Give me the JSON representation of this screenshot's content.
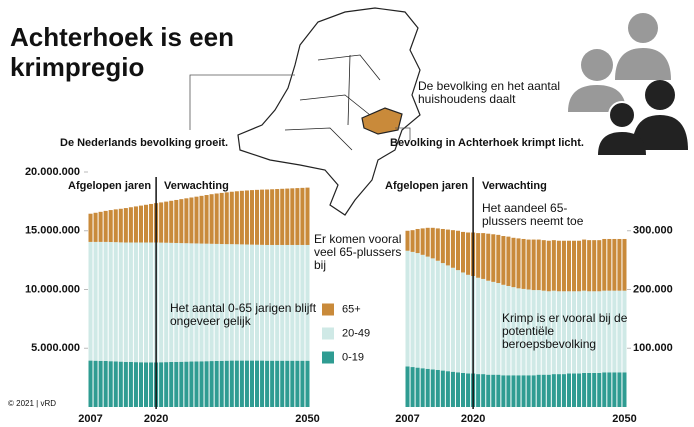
{
  "header": {
    "title": "Achterhoek is een krimpregio",
    "credit": "© 2021 | vRD",
    "note_nl": "De Nederlands bevolking groeit.",
    "note_households": "De bevolking en het aantal huishoudens daalt",
    "note_achterhoek": "Bevolking in Achterhoek krimpt licht."
  },
  "chart_data": [
    {
      "type": "stacked-bar",
      "categories": [
        2007,
        null,
        null,
        null,
        null,
        null,
        null,
        null,
        null,
        null,
        null,
        null,
        null,
        2020,
        null,
        null,
        null,
        null,
        null,
        null,
        null,
        null,
        null,
        null,
        null,
        null,
        null,
        null,
        null,
        null,
        null,
        null,
        null,
        null,
        null,
        null,
        null,
        null,
        null,
        null,
        null,
        null,
        null,
        2050
      ],
      "periods": [
        "Afgelopen jaren",
        "Verwachting"
      ],
      "annotations": [
        "Er komen vooral veel 65-plussers bij",
        "Het aantal 0-65 jarigen blijft ongeveer gelijk"
      ],
      "ylim": [
        0,
        20000000
      ],
      "yticks": [
        {
          "value": 5000000,
          "label": "5.000.000"
        },
        {
          "value": 10000000,
          "label": "10.000.000"
        },
        {
          "value": 15000000,
          "label": "15.000.000"
        },
        {
          "value": 20000000,
          "label": "20.000.000"
        }
      ],
      "axis_side": "left",
      "legend": "center-right",
      "series": [
        {
          "name": "0-19",
          "color": "#2f9c92",
          "values": [
            3950000,
            3940000,
            3930000,
            3920000,
            3900000,
            3880000,
            3860000,
            3840000,
            3830000,
            3820000,
            3810000,
            3800000,
            3800000,
            3800000,
            3810000,
            3820000,
            3830000,
            3840000,
            3850000,
            3860000,
            3870000,
            3880000,
            3890000,
            3900000,
            3910000,
            3920000,
            3930000,
            3940000,
            3950000,
            3950000,
            3950000,
            3950000,
            3950000,
            3950000,
            3950000,
            3940000,
            3940000,
            3940000,
            3940000,
            3940000,
            3940000,
            3940000,
            3940000,
            3940000
          ]
        },
        {
          "name": "20-49",
          "color": "#cfe9e6",
          "values": [
            10100000,
            10110000,
            10120000,
            10130000,
            10140000,
            10150000,
            10150000,
            10160000,
            10170000,
            10180000,
            10190000,
            10200000,
            10200000,
            10200000,
            10180000,
            10160000,
            10140000,
            10120000,
            10100000,
            10080000,
            10060000,
            10040000,
            10020000,
            10000000,
            9980000,
            9960000,
            9940000,
            9920000,
            9910000,
            9900000,
            9890000,
            9880000,
            9870000,
            9860000,
            9850000,
            9850000,
            9850000,
            9850000,
            9850000,
            9850000,
            9850000,
            9850000,
            9850000,
            9850000
          ]
        },
        {
          "name": "65+",
          "color": "#c98a3a",
          "values": [
            2400000,
            2480000,
            2560000,
            2640000,
            2720000,
            2790000,
            2860000,
            2930000,
            3000000,
            3070000,
            3140000,
            3210000,
            3280000,
            3350000,
            3420000,
            3500000,
            3580000,
            3660000,
            3740000,
            3820000,
            3900000,
            3980000,
            4060000,
            4140000,
            4220000,
            4290000,
            4350000,
            4410000,
            4460000,
            4510000,
            4560000,
            4600000,
            4640000,
            4670000,
            4700000,
            4720000,
            4740000,
            4760000,
            4780000,
            4800000,
            4820000,
            4840000,
            4860000,
            4880000
          ]
        }
      ]
    },
    {
      "type": "stacked-bar",
      "categories": [
        2007,
        null,
        null,
        null,
        null,
        null,
        null,
        null,
        null,
        null,
        null,
        null,
        null,
        2020,
        null,
        null,
        null,
        null,
        null,
        null,
        null,
        null,
        null,
        null,
        null,
        null,
        null,
        null,
        null,
        null,
        null,
        null,
        null,
        null,
        null,
        null,
        null,
        null,
        null,
        null,
        null,
        null,
        null,
        2050
      ],
      "periods": [
        "Afgelopen jaren",
        "Verwachting"
      ],
      "annotations": [
        "Het aandeel 65-plussers neemt toe",
        "Krimp is er vooral bij de potentiële beroepsbevolking"
      ],
      "ylim": [
        0,
        400000
      ],
      "yticks": [
        {
          "value": 100000,
          "label": "100.000"
        },
        {
          "value": 200000,
          "label": "200.000"
        },
        {
          "value": 300000,
          "label": "300.000"
        }
      ],
      "axis_side": "right",
      "series": [
        {
          "color": "#2f9c92",
          "values": [
            69000,
            68000,
            67000,
            66000,
            65000,
            64000,
            63000,
            62000,
            61000,
            60000,
            59000,
            58000,
            57000,
            57000,
            56000,
            56000,
            55000,
            55000,
            55000,
            54000,
            54000,
            54000,
            54000,
            54000,
            54000,
            54000,
            55000,
            55000,
            55000,
            56000,
            56000,
            56000,
            57000,
            57000,
            57000,
            58000,
            58000,
            58000,
            58000,
            59000,
            59000,
            59000,
            59000,
            59000
          ]
        },
        {
          "color": "#cfe9e6",
          "values": [
            197000,
            196000,
            195000,
            193000,
            191000,
            189000,
            186000,
            183000,
            180000,
            177000,
            174000,
            171000,
            168000,
            166000,
            164000,
            162000,
            160000,
            158000,
            156000,
            154000,
            152000,
            150000,
            148000,
            147000,
            146000,
            145000,
            144000,
            143000,
            142000,
            142000,
            141000,
            141000,
            140000,
            140000,
            140000,
            140000,
            139000,
            139000,
            139000,
            139000,
            139000,
            139000,
            139000,
            139000
          ]
        },
        {
          "color": "#c98a3a",
          "values": [
            34000,
            37000,
            41000,
            45000,
            49000,
            52000,
            55000,
            58000,
            61000,
            64000,
            67000,
            69000,
            72000,
            74000,
            76000,
            78000,
            80000,
            81000,
            82000,
            83000,
            84000,
            84000,
            85000,
            85000,
            85000,
            86000,
            86000,
            86000,
            86000,
            86000,
            86000,
            86000,
            86000,
            86000,
            86000,
            87000,
            87000,
            87000,
            87000,
            88000,
            88000,
            88000,
            88000,
            88000
          ]
        }
      ]
    }
  ]
}
